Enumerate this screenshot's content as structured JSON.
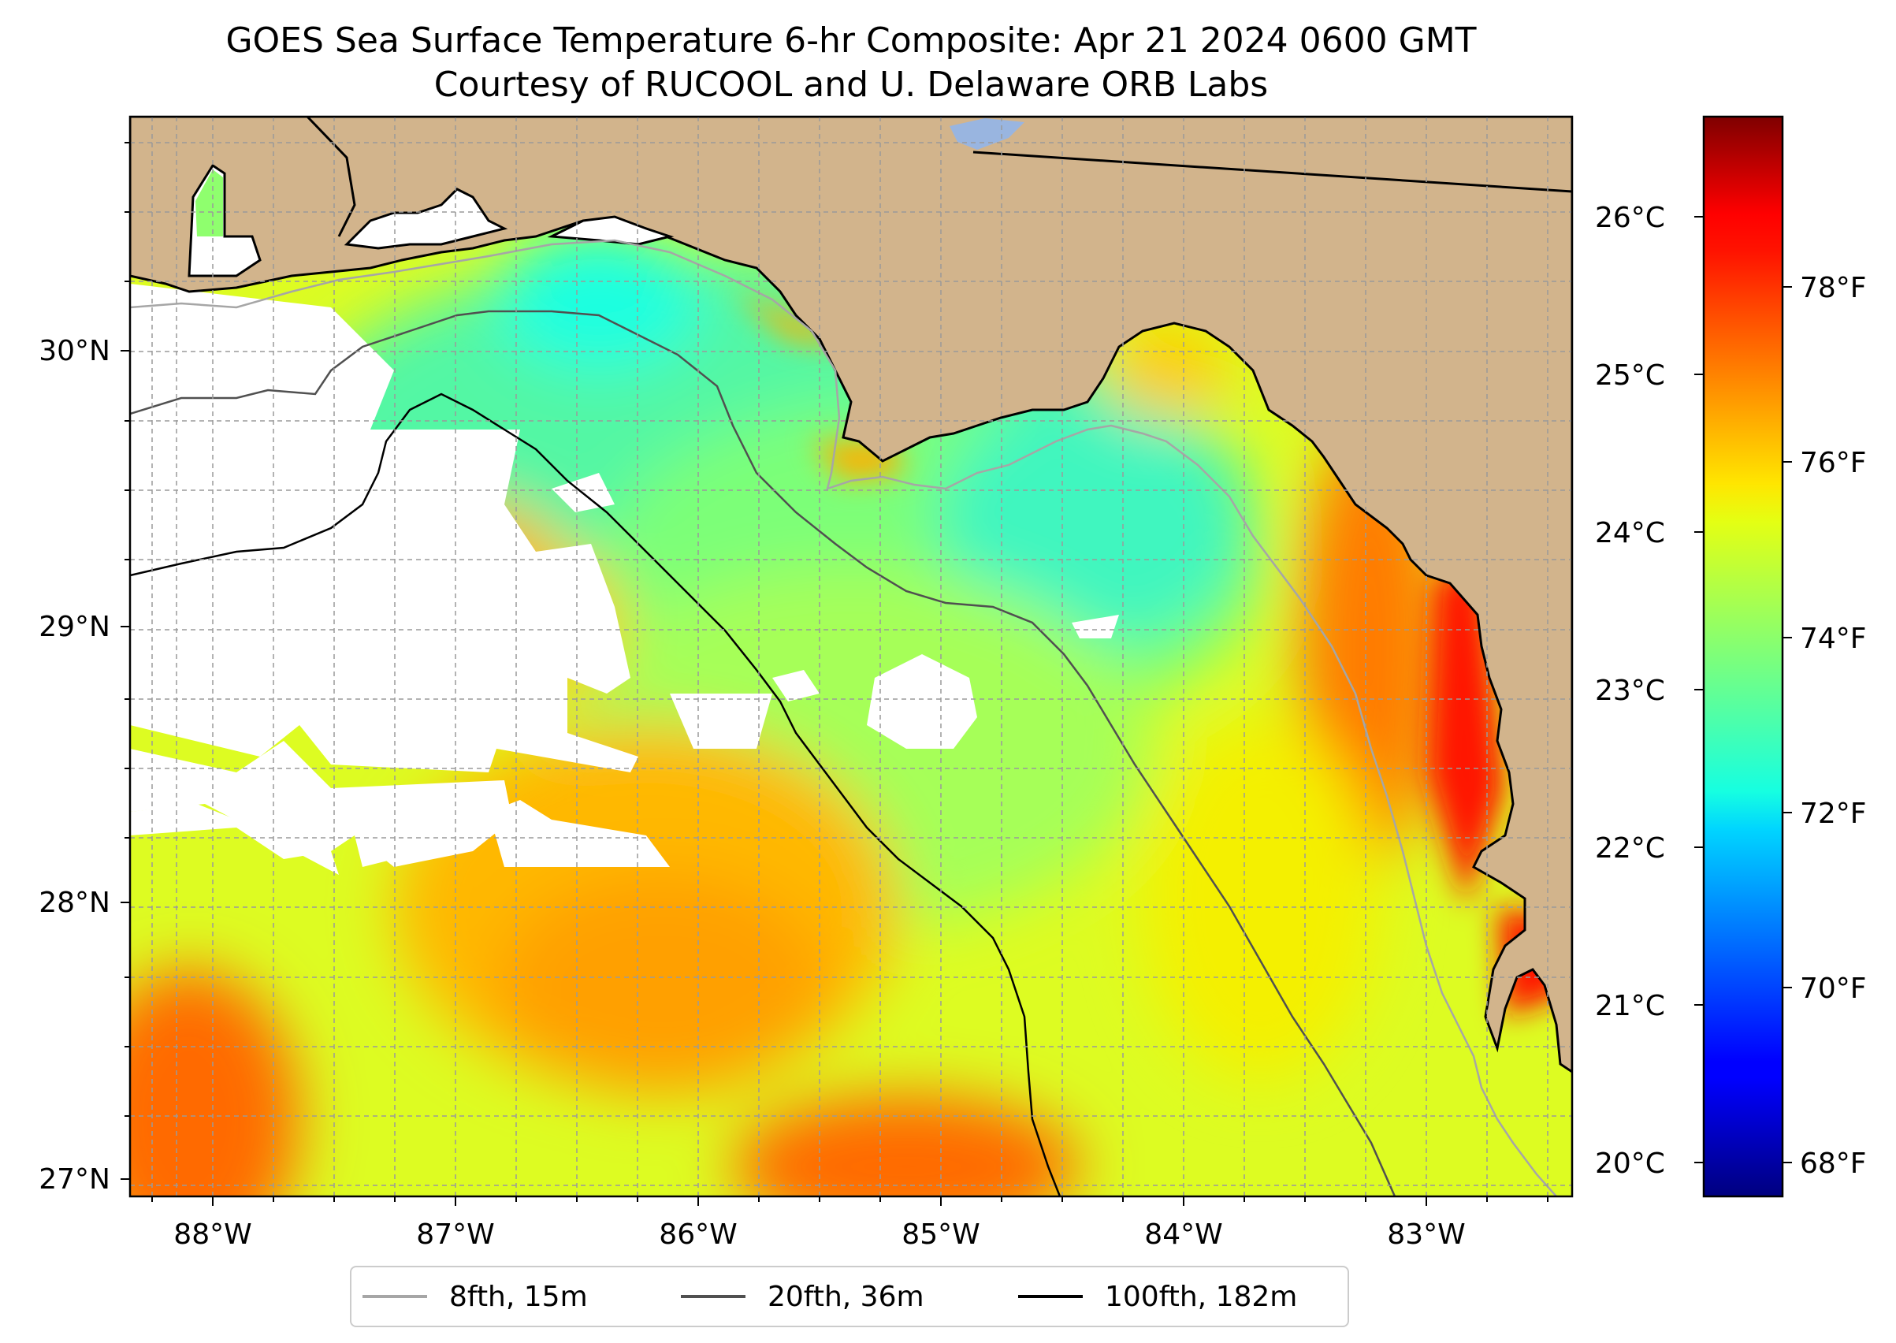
{
  "title": {
    "line1": "GOES Sea Surface Temperature 6-hr Composite: Apr 21 2024 0600 GMT",
    "line2": "Courtesy of RUCOOL and U. Delaware ORB Labs"
  },
  "map": {
    "lon_range": [
      -88.33,
      -82.38
    ],
    "lat_range": [
      26.93,
      30.86
    ],
    "x_ticks": [
      "88°W",
      "87°W",
      "86°W",
      "85°W",
      "84°W",
      "83°W"
    ],
    "y_ticks": [
      "27°N",
      "28°N",
      "29°N",
      "30°N"
    ],
    "gridlines": true,
    "land_color": "#d2b48c",
    "no_data_color": "#ffffff"
  },
  "colorbar": {
    "colormap": "jet",
    "range_f": [
      67.5,
      80.2
    ],
    "celsius_ticks": [
      "20°C",
      "21°C",
      "22°C",
      "23°C",
      "24°C",
      "25°C",
      "26°C"
    ],
    "fahrenheit_ticks": [
      "68°F",
      "70°F",
      "72°F",
      "74°F",
      "76°F",
      "78°F"
    ]
  },
  "legend": {
    "items": [
      {
        "label": "8fth, 15m",
        "color": "#a6a6a6"
      },
      {
        "label": "20fth, 36m",
        "color": "#505050"
      },
      {
        "label": "100fth, 182m",
        "color": "#000000"
      }
    ],
    "position": "bottom-center"
  }
}
